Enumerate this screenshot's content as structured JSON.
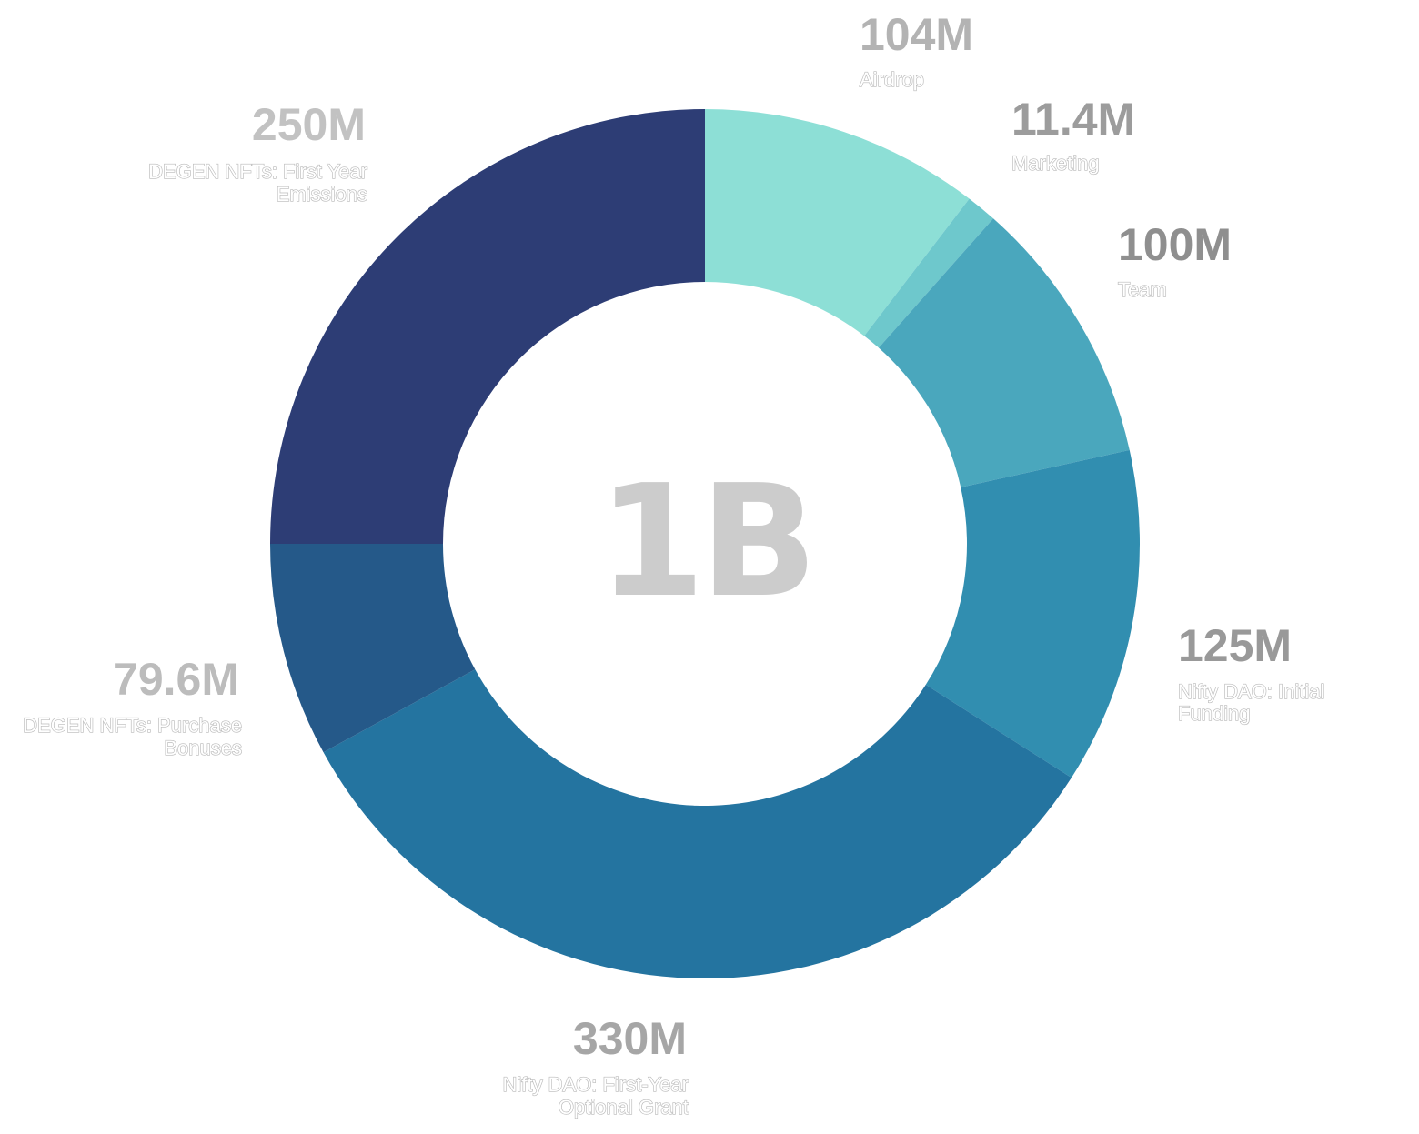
{
  "chart_data": {
    "type": "pie",
    "subtype": "donut",
    "total_label": "1B",
    "legend": "none",
    "slices": [
      {
        "name": "Airdrop",
        "value_label": "104M",
        "value": 104000000,
        "color": "#8ddfd6",
        "label_color": "#b3b3b3"
      },
      {
        "name": "Marketing",
        "value_label": "11.4M",
        "value": 11400000,
        "color": "#6ec8cc",
        "label_color": "#9c9c9c"
      },
      {
        "name": "Team",
        "value_label": "100M",
        "value": 100000000,
        "color": "#4aa7bd",
        "label_color": "#8f8f8f"
      },
      {
        "name": "Nifty DAO: Initial Funding",
        "value_label": "125M",
        "value": 125000000,
        "color": "#318eb0",
        "label_color": "#999999"
      },
      {
        "name": "Nifty DAO: First-Year Optional Grant",
        "value_label": "330M",
        "value": 330000000,
        "color": "#2474a0",
        "label_color": "#a6a6a6"
      },
      {
        "name": "DEGEN NFTs: Purchase Bonuses",
        "value_label": "79.6M",
        "value": 79600000,
        "color": "#255989",
        "label_color": "#bcbcbc"
      },
      {
        "name": "DEGEN NFTs: First Year Emissions",
        "value_label": "250M",
        "value": 250000000,
        "color": "#2d3d75",
        "label_color": "#c2c2c2"
      }
    ]
  }
}
